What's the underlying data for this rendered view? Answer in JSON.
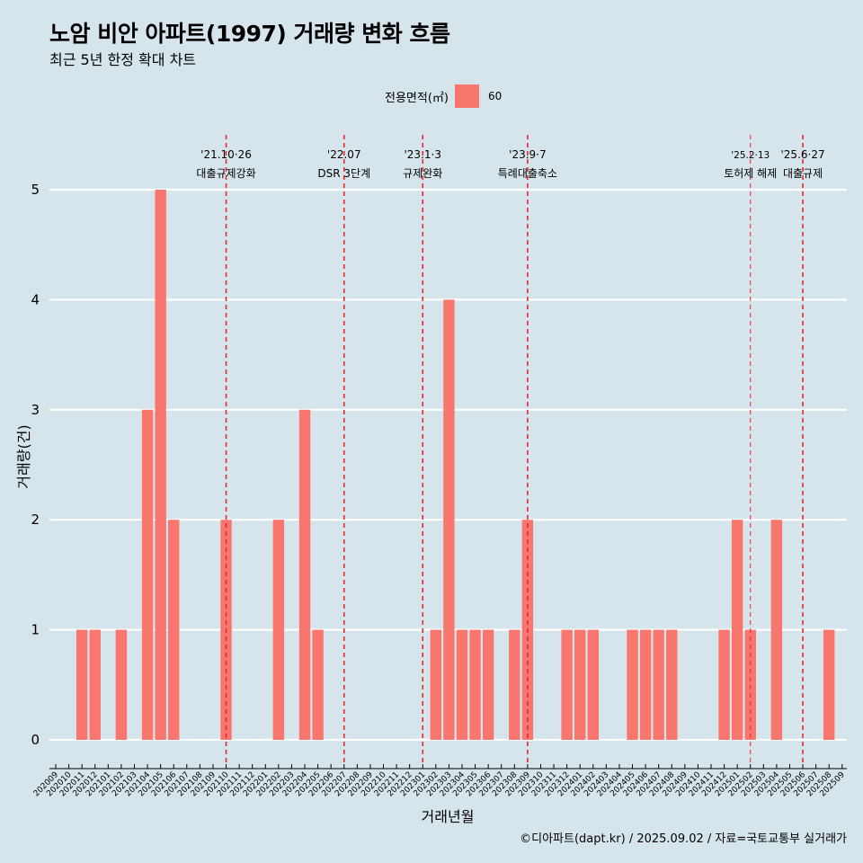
{
  "title": "노암 비안 아파트(1997) 거래량 변화 흐름",
  "subtitle": "최근 5년 한정 확대 차트",
  "legend": {
    "title": "전용면적(㎡)",
    "entry": "60",
    "color": "#f8766d"
  },
  "caption": "©디아파트(dapt.kr) / 2025.09.02 / 자료=국토교통부 실거래가",
  "chart_data": {
    "type": "bar",
    "xlabel": "거래년월",
    "ylabel": "거래량(건)",
    "ylim": [
      0,
      5
    ],
    "yticks": [
      0,
      1,
      2,
      3,
      4,
      5
    ],
    "grid": true,
    "legend_position": "top",
    "bar_color": "#f8766d",
    "reference_line_color": "#e8282b",
    "categories": [
      "202009",
      "202010",
      "202011",
      "202012",
      "202101",
      "202102",
      "202103",
      "202104",
      "202105",
      "202106",
      "202107",
      "202108",
      "202109",
      "202110",
      "202111",
      "202112",
      "202201",
      "202202",
      "202203",
      "202204",
      "202205",
      "202206",
      "202207",
      "202208",
      "202209",
      "202210",
      "202211",
      "202212",
      "202301",
      "202302",
      "202303",
      "202304",
      "202305",
      "202306",
      "202307",
      "202308",
      "202309",
      "202310",
      "202311",
      "202312",
      "202401",
      "202402",
      "202403",
      "202404",
      "202405",
      "202406",
      "202407",
      "202408",
      "202409",
      "202410",
      "202411",
      "202412",
      "202501",
      "202502",
      "202503",
      "202504",
      "202505",
      "202506",
      "202507",
      "202508",
      "202509"
    ],
    "series": [
      {
        "name": "60",
        "values": [
          0,
          0,
          1,
          1,
          0,
          1,
          0,
          3,
          5,
          2,
          0,
          0,
          0,
          2,
          0,
          0,
          0,
          2,
          0,
          3,
          1,
          0,
          0,
          0,
          0,
          0,
          0,
          0,
          0,
          1,
          4,
          1,
          1,
          1,
          0,
          1,
          2,
          0,
          0,
          1,
          1,
          1,
          0,
          0,
          1,
          1,
          1,
          1,
          0,
          0,
          0,
          1,
          2,
          1,
          0,
          2,
          0,
          0,
          0,
          1,
          0
        ]
      }
    ],
    "annotations": [
      {
        "category": "202110",
        "date": "'21.10·26",
        "text": "대출규제강화",
        "style": "dashed"
      },
      {
        "category": "202207",
        "date": "'22.07",
        "text": "DSR 3단계",
        "style": "dashed"
      },
      {
        "category": "202301",
        "date": "'23.1·3",
        "text": "규제완화",
        "style": "dashed"
      },
      {
        "category": "202309",
        "date": "'23.9·7",
        "text": "특례대출축소",
        "style": "dashed"
      },
      {
        "category": "202502",
        "date": "'25.2·13",
        "text": "토허제 해제",
        "style": "thin-dashed"
      },
      {
        "category": "202506",
        "date": "'25.6·27",
        "text": "대출규제",
        "style": "dashed"
      }
    ]
  }
}
